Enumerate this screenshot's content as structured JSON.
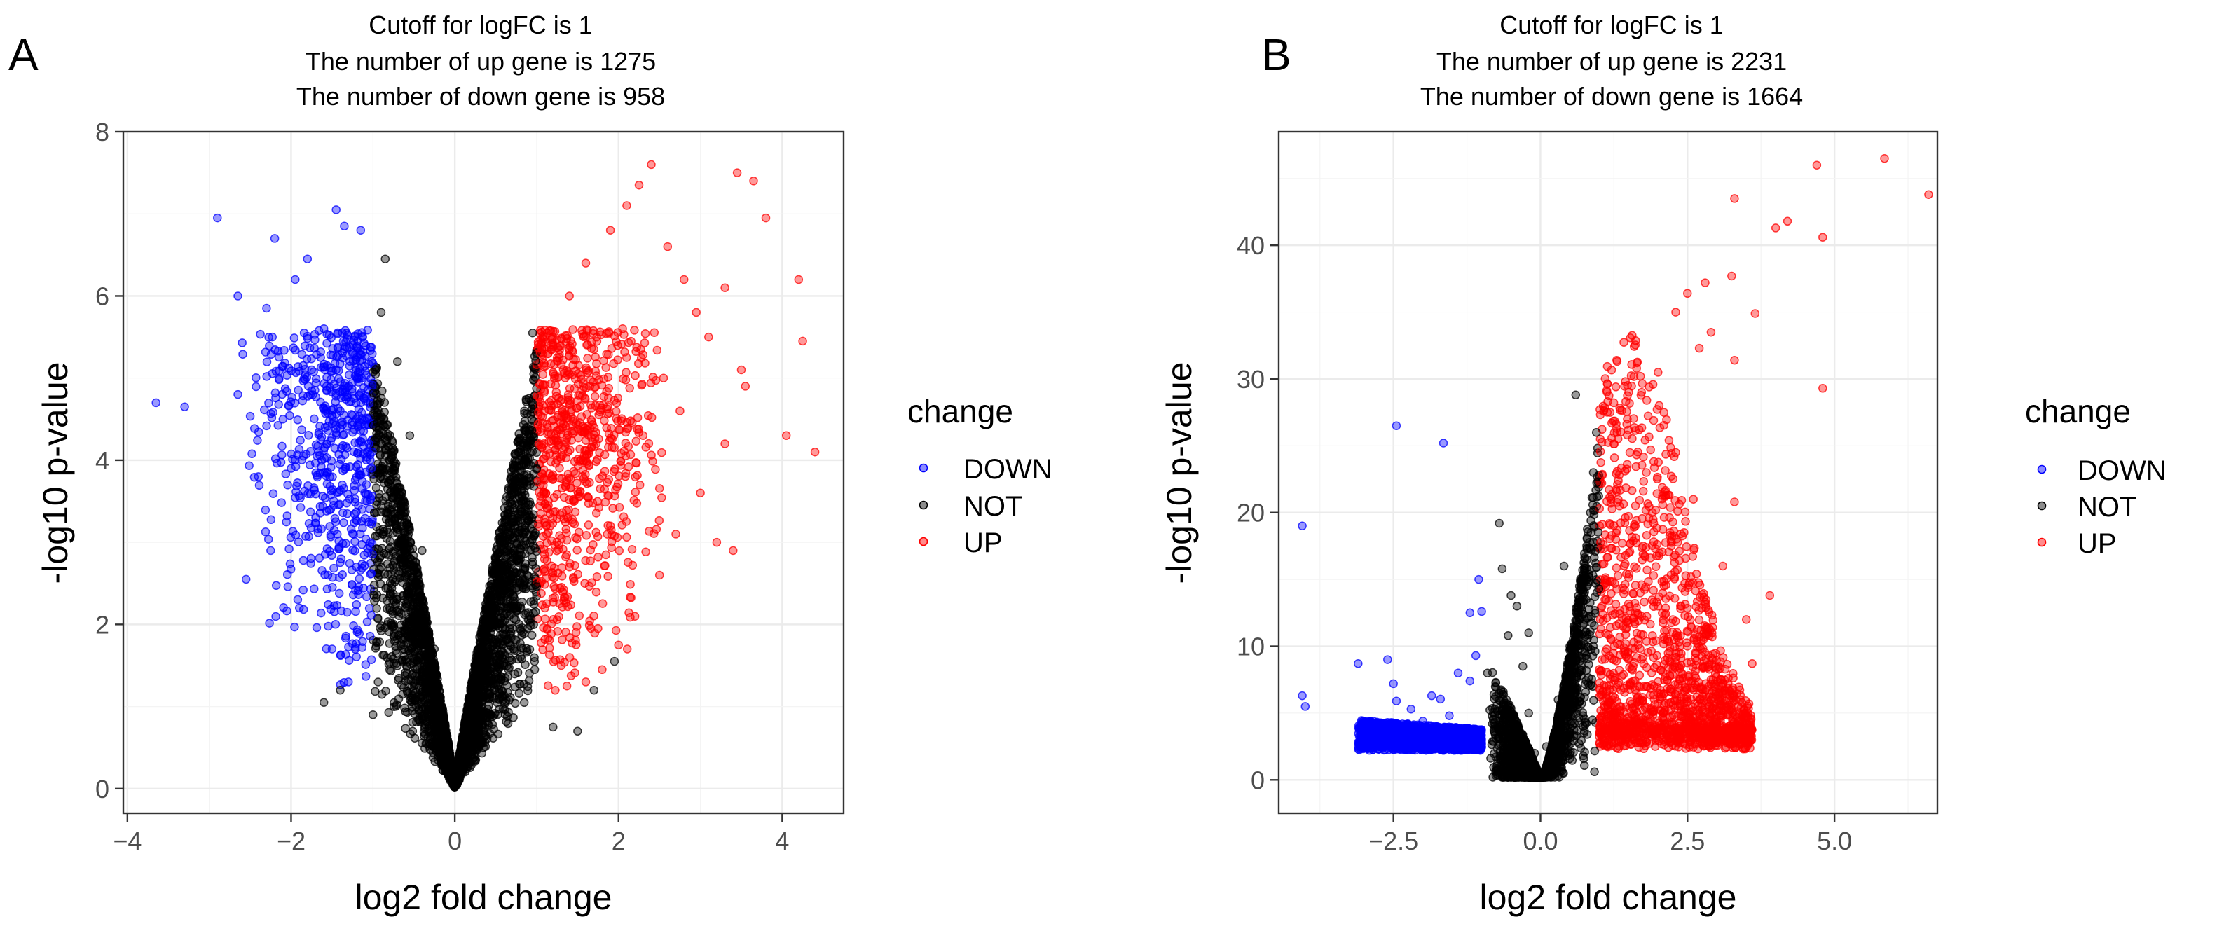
{
  "chart_data": [
    {
      "type": "scatter",
      "panel_label": "A",
      "title_lines": [
        "Cutoff for logFC is 1",
        "The number of up gene is 1275",
        "The number of down gene is 958"
      ],
      "xlabel": "log2 fold change",
      "ylabel": "-log10 p-value",
      "xlim": [
        -4.05,
        4.75
      ],
      "ylim": [
        -0.3,
        8.0
      ],
      "x_ticks": [
        -4,
        -2,
        0,
        2,
        4
      ],
      "x_tick_labels": [
        "−4",
        "−2",
        "0",
        "2",
        "4"
      ],
      "y_ticks": [
        0,
        2,
        4,
        6,
        8
      ],
      "y_tick_labels": [
        "0",
        "2",
        "4",
        "6",
        "8"
      ],
      "cutoff_logFC": 1,
      "up_count": 1275,
      "down_count": 958,
      "legend": {
        "title": "change",
        "entries": [
          {
            "label": "DOWN",
            "color": "#0000FF"
          },
          {
            "label": "NOT",
            "color": "#000000"
          },
          {
            "label": "UP",
            "color": "#FF0000"
          }
        ],
        "position": "right"
      },
      "series": [
        {
          "name": "DOWN",
          "color": "#0000FF",
          "points": [
            [
              -3.65,
              4.7
            ],
            [
              -3.3,
              4.65
            ],
            [
              -2.9,
              6.95
            ],
            [
              -2.65,
              6.0
            ],
            [
              -2.65,
              4.8
            ],
            [
              -2.55,
              2.55
            ],
            [
              -2.3,
              5.85
            ],
            [
              -2.2,
              6.7
            ],
            [
              -1.95,
              6.2
            ],
            [
              -1.8,
              6.45
            ],
            [
              -1.45,
              7.05
            ],
            [
              -1.35,
              6.85
            ],
            [
              -1.15,
              6.8
            ],
            [
              -1.6,
              5.6
            ],
            [
              -1.75,
              5.1
            ],
            [
              -2.1,
              4.5
            ],
            [
              -2.4,
              3.8
            ],
            [
              -2.25,
              2.9
            ],
            [
              -1.9,
              2.2
            ],
            [
              -1.5,
              1.7
            ],
            [
              -1.3,
              1.3
            ],
            [
              -1.2,
              2.7
            ],
            [
              -1.1,
              3.6
            ],
            [
              -1.05,
              4.2
            ],
            [
              -1.4,
              4.6
            ],
            [
              -1.7,
              3.3
            ],
            [
              -2.0,
              3.9
            ],
            [
              -1.55,
              2.6
            ],
            [
              -1.25,
              5.3
            ],
            [
              -1.85,
              4.05
            ]
          ]
        },
        {
          "name": "NOT",
          "color": "#000000",
          "points": [
            [
              -0.85,
              6.45
            ],
            [
              -0.9,
              5.8
            ],
            [
              -0.55,
              4.3
            ],
            [
              -0.4,
              2.9
            ],
            [
              -0.25,
              1.7
            ],
            [
              -0.15,
              0.9
            ],
            [
              0.0,
              0.1
            ],
            [
              0.15,
              0.8
            ],
            [
              0.3,
              1.6
            ],
            [
              0.5,
              2.8
            ],
            [
              0.7,
              3.8
            ],
            [
              0.85,
              4.6
            ],
            [
              0.95,
              5.55
            ],
            [
              -0.7,
              5.2
            ],
            [
              -0.6,
              2.2
            ],
            [
              0.6,
              1.5
            ],
            [
              -1.4,
              1.2
            ],
            [
              -1.6,
              1.05
            ],
            [
              -1.0,
              0.9
            ],
            [
              1.2,
              0.75
            ],
            [
              1.5,
              0.7
            ],
            [
              1.7,
              1.2
            ],
            [
              1.95,
              1.55
            ],
            [
              -0.3,
              0.55
            ],
            [
              0.35,
              0.5
            ],
            [
              -0.8,
              3.4
            ],
            [
              0.75,
              2.2
            ]
          ]
        },
        {
          "name": "UP",
          "color": "#FF0000",
          "points": [
            [
              2.4,
              7.6
            ],
            [
              2.25,
              7.35
            ],
            [
              3.45,
              7.5
            ],
            [
              3.65,
              7.4
            ],
            [
              3.8,
              6.95
            ],
            [
              4.2,
              6.2
            ],
            [
              4.25,
              5.45
            ],
            [
              4.4,
              4.1
            ],
            [
              4.05,
              4.3
            ],
            [
              3.5,
              5.1
            ],
            [
              3.3,
              4.2
            ],
            [
              3.3,
              6.1
            ],
            [
              3.1,
              5.5
            ],
            [
              2.95,
              5.8
            ],
            [
              3.2,
              3.0
            ],
            [
              3.4,
              2.9
            ],
            [
              3.0,
              3.6
            ],
            [
              2.7,
              3.1
            ],
            [
              2.5,
              2.6
            ],
            [
              2.2,
              2.1
            ],
            [
              2.0,
              1.75
            ],
            [
              1.8,
              1.45
            ],
            [
              1.6,
              1.3
            ],
            [
              1.3,
              1.5
            ],
            [
              1.1,
              2.2
            ],
            [
              1.05,
              3.5
            ],
            [
              1.1,
              4.6
            ],
            [
              1.2,
              5.4
            ],
            [
              1.4,
              6.0
            ],
            [
              1.6,
              6.4
            ],
            [
              1.9,
              6.8
            ],
            [
              2.1,
              7.1
            ],
            [
              2.6,
              6.6
            ],
            [
              2.8,
              6.2
            ],
            [
              2.55,
              5.0
            ],
            [
              2.3,
              4.3
            ],
            [
              1.9,
              3.2
            ],
            [
              1.65,
              4.9
            ],
            [
              2.05,
              5.6
            ],
            [
              1.4,
              2.7
            ],
            [
              2.75,
              4.6
            ],
            [
              3.55,
              4.9
            ],
            [
              1.25,
              4.0
            ]
          ]
        }
      ]
    },
    {
      "type": "scatter",
      "panel_label": "B",
      "title_lines": [
        "Cutoff for logFC is 1",
        "The number of up gene is 2231",
        "The number of down gene is 1664"
      ],
      "xlabel": "log2 fold change",
      "ylabel": "-log10 p-value",
      "xlim": [
        -4.45,
        6.75
      ],
      "ylim": [
        -2.5,
        48.5
      ],
      "x_ticks": [
        -2.5,
        0.0,
        2.5,
        5.0
      ],
      "x_tick_labels": [
        "−2.5",
        "0.0",
        "2.5",
        "5.0"
      ],
      "y_ticks": [
        0,
        10,
        20,
        30,
        40
      ],
      "y_tick_labels": [
        "0",
        "10",
        "20",
        "30",
        "40"
      ],
      "cutoff_logFC": 1,
      "up_count": 2231,
      "down_count": 1664,
      "legend": {
        "title": "change",
        "entries": [
          {
            "label": "DOWN",
            "color": "#0000FF"
          },
          {
            "label": "NOT",
            "color": "#000000"
          },
          {
            "label": "UP",
            "color": "#FF0000"
          }
        ],
        "position": "right"
      },
      "series": [
        {
          "name": "DOWN",
          "color": "#0000FF",
          "points": [
            [
              -4.05,
              19.0
            ],
            [
              -2.45,
              26.5
            ],
            [
              -1.65,
              25.2
            ],
            [
              -4.05,
              6.3
            ],
            [
              -4.0,
              5.5
            ],
            [
              -3.1,
              8.7
            ],
            [
              -2.6,
              9.0
            ],
            [
              -2.5,
              7.2
            ],
            [
              -2.45,
              5.9
            ],
            [
              -2.2,
              5.3
            ],
            [
              -1.85,
              6.3
            ],
            [
              -1.7,
              6.05
            ],
            [
              -1.55,
              4.8
            ],
            [
              -1.4,
              8.0
            ],
            [
              -1.2,
              7.4
            ],
            [
              -1.1,
              9.3
            ],
            [
              -1.05,
              15.0
            ],
            [
              -1.0,
              12.6
            ],
            [
              -1.2,
              12.5
            ],
            [
              -2.0,
              4.4
            ],
            [
              -2.4,
              3.5
            ],
            [
              -1.5,
              3.2
            ]
          ]
        },
        {
          "name": "NOT",
          "color": "#000000",
          "points": [
            [
              -0.7,
              19.2
            ],
            [
              -0.65,
              15.8
            ],
            [
              -0.5,
              13.8
            ],
            [
              -0.4,
              13.0
            ],
            [
              -0.55,
              10.8
            ],
            [
              -0.3,
              8.5
            ],
            [
              -0.2,
              5.0
            ],
            [
              -0.1,
              2.0
            ],
            [
              0.0,
              0.5
            ],
            [
              0.1,
              2.5
            ],
            [
              0.3,
              6.0
            ],
            [
              0.5,
              10.0
            ],
            [
              0.7,
              15.0
            ],
            [
              0.85,
              20.0
            ],
            [
              0.9,
              23.0
            ],
            [
              0.95,
              26.0
            ],
            [
              0.6,
              28.8
            ],
            [
              -0.9,
              8.0
            ],
            [
              -0.8,
              4.5
            ],
            [
              0.4,
              16.0
            ],
            [
              0.75,
              12.0
            ],
            [
              -0.2,
              11.0
            ]
          ]
        },
        {
          "name": "UP",
          "color": "#FF0000",
          "points": [
            [
              5.85,
              46.5
            ],
            [
              4.7,
              46.0
            ],
            [
              6.6,
              43.8
            ],
            [
              3.3,
              43.5
            ],
            [
              4.2,
              41.8
            ],
            [
              4.0,
              41.3
            ],
            [
              4.8,
              40.6
            ],
            [
              3.25,
              37.7
            ],
            [
              2.8,
              37.2
            ],
            [
              2.5,
              36.4
            ],
            [
              3.65,
              34.9
            ],
            [
              2.3,
              35.0
            ],
            [
              2.9,
              33.5
            ],
            [
              3.3,
              31.4
            ],
            [
              2.7,
              32.3
            ],
            [
              4.8,
              29.3
            ],
            [
              2.0,
              30.5
            ],
            [
              1.7,
              30.2
            ],
            [
              1.5,
              29.0
            ],
            [
              1.3,
              26.0
            ],
            [
              1.2,
              21.0
            ],
            [
              1.1,
              15.0
            ],
            [
              1.05,
              9.0
            ],
            [
              1.2,
              4.5
            ],
            [
              1.6,
              3.0
            ],
            [
              2.2,
              2.8
            ],
            [
              2.8,
              3.2
            ],
            [
              3.3,
              3.5
            ],
            [
              3.9,
              13.8
            ],
            [
              3.3,
              20.8
            ],
            [
              3.6,
              8.7
            ],
            [
              3.5,
              12.0
            ],
            [
              3.1,
              16.0
            ],
            [
              2.6,
              21.0
            ],
            [
              2.3,
              24.5
            ],
            [
              2.1,
              27.5
            ],
            [
              1.8,
              23.0
            ],
            [
              1.5,
              17.0
            ],
            [
              2.0,
              13.0
            ],
            [
              2.5,
              10.0
            ],
            [
              2.9,
              7.5
            ],
            [
              1.8,
              7.0
            ],
            [
              1.4,
              11.5
            ],
            [
              2.2,
              18.5
            ],
            [
              1.6,
              5.5
            ]
          ]
        }
      ]
    }
  ]
}
